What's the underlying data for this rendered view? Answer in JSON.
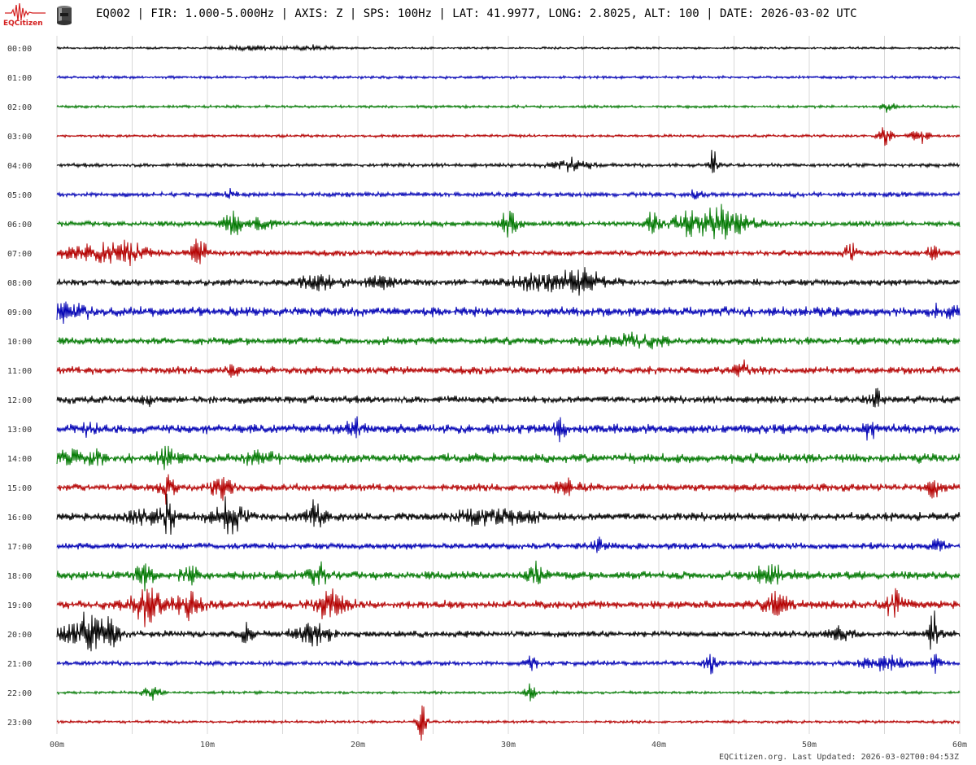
{
  "header": {
    "logo_text": "EQCitizen",
    "title": "EQ002 | FIR: 1.000-5.000Hz | AXIS: Z | SPS: 100Hz | LAT: 41.9977, LONG: 2.8025, ALT: 100 | DATE: 2026-03-02 UTC"
  },
  "footer": {
    "text": "EQCitizen.org. Last Updated: 2026-03-02T00:04:53Z"
  },
  "colors": {
    "black": "#000000",
    "blue": "#0000b4",
    "green": "#007800",
    "red": "#b40000",
    "grid": "#d8d8d8",
    "logo": "#d42020"
  },
  "chart_data": {
    "type": "helicorder",
    "x_unit": "minutes",
    "xlim": [
      0,
      60
    ],
    "x_ticks": [
      "00m",
      "10m",
      "20m",
      "30m",
      "40m",
      "50m",
      "60m"
    ],
    "grid": true,
    "rows": [
      {
        "label": "00:00",
        "color": "black",
        "noise": 1.2,
        "events": [
          {
            "t": 13,
            "amp": 3,
            "dur": 2
          },
          {
            "t": 17,
            "amp": 3,
            "dur": 1.5
          }
        ]
      },
      {
        "label": "01:00",
        "color": "blue",
        "noise": 1.5,
        "events": []
      },
      {
        "label": "02:00",
        "color": "green",
        "noise": 1.5,
        "events": [
          {
            "t": 55.2,
            "amp": 10,
            "dur": 0.4
          }
        ]
      },
      {
        "label": "03:00",
        "color": "red",
        "noise": 1.5,
        "events": [
          {
            "t": 55.1,
            "amp": 14,
            "dur": 0.5
          },
          {
            "t": 57.3,
            "amp": 12,
            "dur": 0.6
          }
        ]
      },
      {
        "label": "04:00",
        "color": "black",
        "noise": 2,
        "events": [
          {
            "t": 34.2,
            "amp": 8,
            "dur": 1.2
          },
          {
            "t": 43.6,
            "amp": 20,
            "dur": 0.3
          }
        ]
      },
      {
        "label": "05:00",
        "color": "blue",
        "noise": 2.5,
        "events": [
          {
            "t": 11.5,
            "amp": 8,
            "dur": 0.3
          },
          {
            "t": 42.5,
            "amp": 10,
            "dur": 0.3
          }
        ]
      },
      {
        "label": "06:00",
        "color": "green",
        "noise": 3,
        "events": [
          {
            "t": 11.6,
            "amp": 24,
            "dur": 0.6
          },
          {
            "t": 13.5,
            "amp": 12,
            "dur": 0.8
          },
          {
            "t": 30,
            "amp": 20,
            "dur": 0.6
          },
          {
            "t": 43.5,
            "amp": 30,
            "dur": 2.2
          },
          {
            "t": 39.5,
            "amp": 18,
            "dur": 0.4
          }
        ]
      },
      {
        "label": "07:00",
        "color": "red",
        "noise": 3,
        "events": [
          {
            "t": 2.5,
            "amp": 14,
            "dur": 2
          },
          {
            "t": 5,
            "amp": 12,
            "dur": 1.5
          },
          {
            "t": 9.4,
            "amp": 18,
            "dur": 0.6
          },
          {
            "t": 52.7,
            "amp": 14,
            "dur": 0.4
          },
          {
            "t": 58.3,
            "amp": 14,
            "dur": 0.4
          }
        ]
      },
      {
        "label": "08:00",
        "color": "black",
        "noise": 3.5,
        "events": [
          {
            "t": 17.5,
            "amp": 10,
            "dur": 1.5
          },
          {
            "t": 21.5,
            "amp": 8,
            "dur": 1.2
          },
          {
            "t": 31.5,
            "amp": 12,
            "dur": 1.5
          },
          {
            "t": 34.8,
            "amp": 16,
            "dur": 1.8
          }
        ]
      },
      {
        "label": "09:00",
        "color": "blue",
        "noise": 5,
        "events": [
          {
            "t": 0.5,
            "amp": 10,
            "dur": 1.5
          },
          {
            "t": 59,
            "amp": 8,
            "dur": 1
          }
        ]
      },
      {
        "label": "10:00",
        "color": "green",
        "noise": 4,
        "events": [
          {
            "t": 38.5,
            "amp": 8,
            "dur": 2.5
          }
        ]
      },
      {
        "label": "11:00",
        "color": "red",
        "noise": 4,
        "events": [
          {
            "t": 11.7,
            "amp": 12,
            "dur": 0.4
          },
          {
            "t": 45.5,
            "amp": 10,
            "dur": 0.6
          }
        ]
      },
      {
        "label": "12:00",
        "color": "black",
        "noise": 4,
        "events": [
          {
            "t": 6,
            "amp": 8,
            "dur": 0.4
          },
          {
            "t": 54.5,
            "amp": 16,
            "dur": 0.4
          }
        ]
      },
      {
        "label": "13:00",
        "color": "blue",
        "noise": 5,
        "events": [
          {
            "t": 2.3,
            "amp": 10,
            "dur": 0.6
          },
          {
            "t": 19.8,
            "amp": 16,
            "dur": 0.5
          },
          {
            "t": 33.5,
            "amp": 14,
            "dur": 0.4
          },
          {
            "t": 54.1,
            "amp": 14,
            "dur": 0.4
          }
        ]
      },
      {
        "label": "14:00",
        "color": "green",
        "noise": 5,
        "events": [
          {
            "t": 1,
            "amp": 10,
            "dur": 0.8
          },
          {
            "t": 2.6,
            "amp": 14,
            "dur": 0.5
          },
          {
            "t": 7.3,
            "amp": 16,
            "dur": 0.5
          },
          {
            "t": 13.5,
            "amp": 10,
            "dur": 1
          }
        ]
      },
      {
        "label": "15:00",
        "color": "red",
        "noise": 4,
        "events": [
          {
            "t": 7.3,
            "amp": 20,
            "dur": 0.5
          },
          {
            "t": 11,
            "amp": 16,
            "dur": 0.8
          },
          {
            "t": 34,
            "amp": 10,
            "dur": 1
          },
          {
            "t": 58.3,
            "amp": 16,
            "dur": 0.4
          }
        ]
      },
      {
        "label": "16:00",
        "color": "black",
        "noise": 4.5,
        "events": [
          {
            "t": 6,
            "amp": 12,
            "dur": 1.2
          },
          {
            "t": 7.4,
            "amp": 30,
            "dur": 0.4
          },
          {
            "t": 11.4,
            "amp": 26,
            "dur": 1
          },
          {
            "t": 17.2,
            "amp": 22,
            "dur": 0.6
          },
          {
            "t": 28,
            "amp": 8,
            "dur": 1.5
          },
          {
            "t": 30.5,
            "amp": 10,
            "dur": 1.5
          }
        ]
      },
      {
        "label": "17:00",
        "color": "blue",
        "noise": 3.5,
        "events": [
          {
            "t": 36,
            "amp": 10,
            "dur": 0.4
          },
          {
            "t": 58.5,
            "amp": 8,
            "dur": 0.6
          }
        ]
      },
      {
        "label": "18:00",
        "color": "green",
        "noise": 4.5,
        "events": [
          {
            "t": 5.8,
            "amp": 18,
            "dur": 0.5
          },
          {
            "t": 8.8,
            "amp": 14,
            "dur": 0.6
          },
          {
            "t": 17.4,
            "amp": 18,
            "dur": 0.6
          },
          {
            "t": 31.8,
            "amp": 20,
            "dur": 0.5
          },
          {
            "t": 47.5,
            "amp": 16,
            "dur": 1
          }
        ]
      },
      {
        "label": "19:00",
        "color": "red",
        "noise": 4.5,
        "events": [
          {
            "t": 5.8,
            "amp": 28,
            "dur": 1.2
          },
          {
            "t": 8.8,
            "amp": 18,
            "dur": 1
          },
          {
            "t": 18.2,
            "amp": 20,
            "dur": 1
          },
          {
            "t": 47.8,
            "amp": 16,
            "dur": 0.8
          },
          {
            "t": 55.8,
            "amp": 20,
            "dur": 0.6
          }
        ]
      },
      {
        "label": "20:00",
        "color": "black",
        "noise": 3.5,
        "events": [
          {
            "t": 1.8,
            "amp": 24,
            "dur": 1.5
          },
          {
            "t": 3.3,
            "amp": 18,
            "dur": 0.8
          },
          {
            "t": 12.6,
            "amp": 16,
            "dur": 0.4
          },
          {
            "t": 17,
            "amp": 18,
            "dur": 1.2
          },
          {
            "t": 52,
            "amp": 10,
            "dur": 0.8
          },
          {
            "t": 58.3,
            "amp": 28,
            "dur": 0.4
          }
        ]
      },
      {
        "label": "21:00",
        "color": "blue",
        "noise": 2.5,
        "events": [
          {
            "t": 31.5,
            "amp": 12,
            "dur": 0.4
          },
          {
            "t": 43.4,
            "amp": 14,
            "dur": 0.4
          },
          {
            "t": 55,
            "amp": 10,
            "dur": 1.5
          },
          {
            "t": 58.3,
            "amp": 14,
            "dur": 0.4
          }
        ]
      },
      {
        "label": "22:00",
        "color": "green",
        "noise": 1.5,
        "events": [
          {
            "t": 6.3,
            "amp": 10,
            "dur": 0.6
          },
          {
            "t": 31.5,
            "amp": 14,
            "dur": 0.4
          }
        ]
      },
      {
        "label": "23:00",
        "color": "red",
        "noise": 1.5,
        "events": [
          {
            "t": 24.3,
            "amp": 30,
            "dur": 0.3
          }
        ]
      }
    ]
  }
}
